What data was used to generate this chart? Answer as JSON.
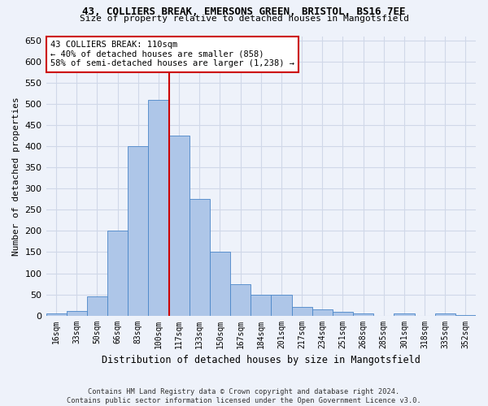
{
  "title_line1": "43, COLLIERS BREAK, EMERSONS GREEN, BRISTOL, BS16 7EE",
  "title_line2": "Size of property relative to detached houses in Mangotsfield",
  "xlabel": "Distribution of detached houses by size in Mangotsfield",
  "ylabel": "Number of detached properties",
  "footnote": "Contains HM Land Registry data © Crown copyright and database right 2024.\nContains public sector information licensed under the Open Government Licence v3.0.",
  "annotation_title": "43 COLLIERS BREAK: 110sqm",
  "annotation_line1": "← 40% of detached houses are smaller (858)",
  "annotation_line2": "58% of semi-detached houses are larger (1,238) →",
  "bar_categories": [
    "16sqm",
    "33sqm",
    "50sqm",
    "66sqm",
    "83sqm",
    "100sqm",
    "117sqm",
    "133sqm",
    "150sqm",
    "167sqm",
    "184sqm",
    "201sqm",
    "217sqm",
    "234sqm",
    "251sqm",
    "268sqm",
    "285sqm",
    "301sqm",
    "318sqm",
    "335sqm",
    "352sqm"
  ],
  "bar_values": [
    5,
    10,
    45,
    200,
    400,
    510,
    425,
    275,
    150,
    75,
    50,
    50,
    20,
    15,
    8,
    5,
    0,
    5,
    0,
    5,
    2
  ],
  "bar_color": "#aec6e8",
  "bar_edge_color": "#4a86c8",
  "vline_color": "#cc0000",
  "annotation_box_color": "#cc0000",
  "background_color": "#eef2fa",
  "grid_color": "#d0d8e8",
  "ylim": [
    0,
    660
  ],
  "figsize": [
    6.0,
    5.0
  ],
  "dpi": 100
}
